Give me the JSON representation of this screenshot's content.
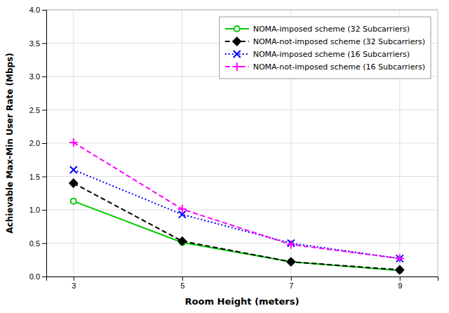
{
  "chart_data": {
    "type": "line",
    "xlabel": "Room Height (meters)",
    "ylabel": "Achievable Max-Min User Rate (Mbps)",
    "x": [
      3,
      5,
      7,
      9
    ],
    "series": [
      {
        "name": "NOMA-imposed scheme (32 Subcarriers)",
        "color": "#00cc00",
        "marker": "circle",
        "line_style": "solid",
        "values": [
          1.13,
          0.51,
          0.22,
          0.09
        ]
      },
      {
        "name": "NOMA-not-imposed scheme (32 Subcarriers)",
        "color": "#000000",
        "marker": "diamond",
        "line_style": "dashed",
        "values": [
          1.4,
          0.53,
          0.22,
          0.1
        ]
      },
      {
        "name": "NOMA-imposed scheme (16 Subcarriers)",
        "color": "#0000ff",
        "marker": "x",
        "line_style": "dotted",
        "values": [
          1.6,
          0.93,
          0.5,
          0.27
        ]
      },
      {
        "name": "NOMA-not-imposed scheme (16 Subcarriers)",
        "color": "#ff00ff",
        "marker": "plus",
        "line_style": "dashed",
        "values": [
          2.01,
          1.01,
          0.48,
          0.27
        ]
      }
    ],
    "xlim": [
      2.5,
      9.7
    ],
    "xticks": [
      3,
      5,
      7,
      9
    ],
    "ylim": [
      0,
      4
    ],
    "yticks": [
      {
        "value": 0,
        "label": "0.0"
      },
      0.5,
      {
        "value": 1,
        "label": "1.0"
      },
      1.5,
      {
        "value": 2,
        "label": "2.0"
      },
      2.5,
      {
        "value": 3,
        "label": "3.0"
      },
      3.5,
      {
        "value": 4,
        "label": "4.0"
      }
    ],
    "grid": true,
    "legend": "upper right"
  }
}
